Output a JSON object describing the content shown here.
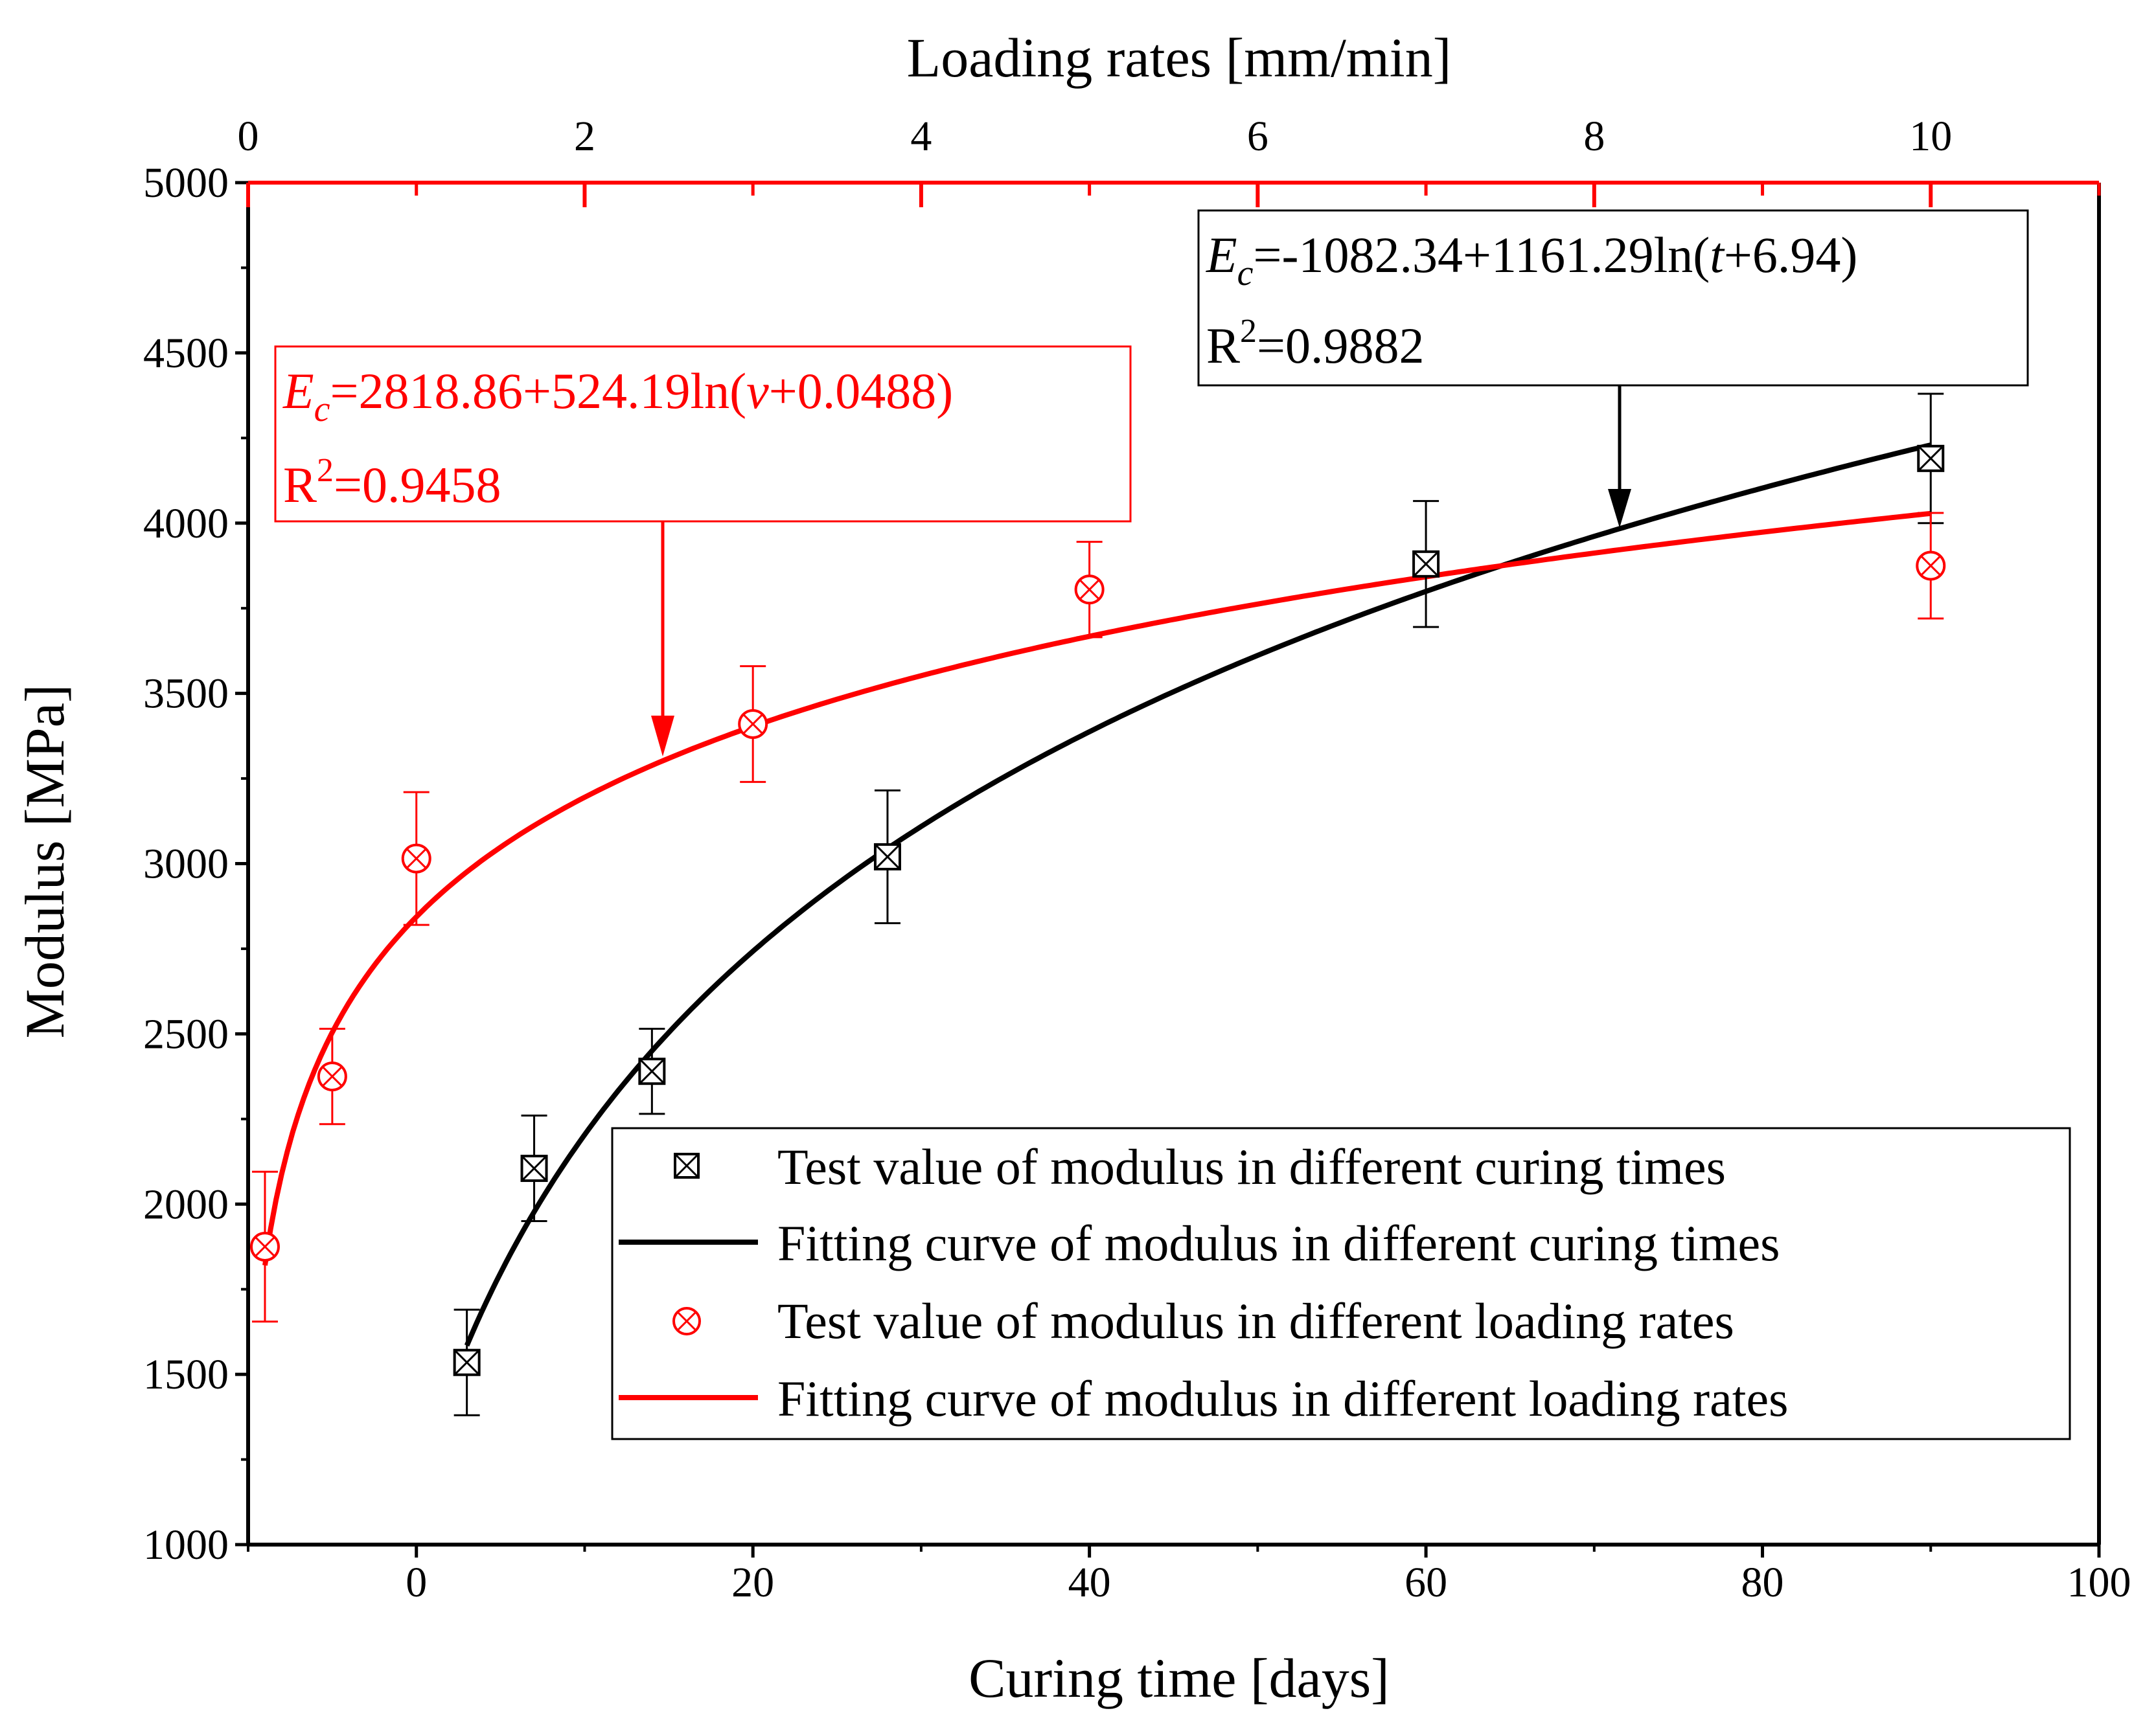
{
  "chart_data": {
    "type": "scatter",
    "title": "",
    "xlabel": "Curing time [days]",
    "ylabel": "Modulus [MPa]",
    "x2label": "Loading rates [mm/min]",
    "xlim": [
      -10,
      100
    ],
    "ylim": [
      1000,
      5000
    ],
    "x2lim": [
      0,
      11
    ],
    "x_ticks": [
      0,
      20,
      40,
      60,
      80,
      100
    ],
    "y_ticks": [
      1000,
      1500,
      2000,
      2500,
      3000,
      3500,
      4000,
      4500,
      5000
    ],
    "x2_ticks": [
      0,
      2,
      4,
      6,
      8,
      10
    ],
    "series": [
      {
        "name": "Test value of modulus in different curing times",
        "axis": "bottom",
        "marker": "square-x",
        "color": "#000000",
        "x": [
          3,
          7,
          14,
          28,
          60,
          90
        ],
        "y": [
          1535,
          2105,
          2390,
          3020,
          3880,
          4190
        ],
        "err": [
          155,
          155,
          125,
          195,
          185,
          190
        ]
      },
      {
        "name": "Fitting curve of modulus in different curing times",
        "axis": "bottom",
        "type": "line",
        "color": "#000000",
        "fit": {
          "a": -1082.34,
          "b": 1161.29,
          "c": 6.94,
          "from": 3,
          "to": 90
        }
      },
      {
        "name": "Test value of modulus in different loading rates",
        "axis": "top",
        "marker": "circle-x",
        "color": "#ff0000",
        "x": [
          0.1,
          0.5,
          1,
          3,
          5,
          10
        ],
        "y": [
          1875,
          2375,
          3015,
          3410,
          3805,
          3875
        ],
        "err": [
          220,
          140,
          195,
          170,
          140,
          155
        ]
      },
      {
        "name": "Fitting curve of modulus in different loading rates",
        "axis": "top",
        "type": "line",
        "color": "#ff0000",
        "fit": {
          "a": 2818.86,
          "b": 524.19,
          "c": 0.0488,
          "from": 0.1,
          "to": 10
        }
      }
    ],
    "annotations": [
      {
        "id": "black-eq",
        "color": "#000000",
        "eq_var": "E",
        "eq_sub": "c",
        "eq_rest": "=-1082.34+1161.29ln(",
        "eq_arg": "t",
        "eq_tail": "+6.94)",
        "r2_label": "R",
        "r2_sup": "2",
        "r2_value": "=0.9882"
      },
      {
        "id": "red-eq",
        "color": "#ff0000",
        "eq_var": "E",
        "eq_sub": "c",
        "eq_rest": "=2818.86+524.19ln(",
        "eq_arg": "v",
        "eq_tail": "+0.0488)",
        "r2_label": "R",
        "r2_sup": "2",
        "r2_value": "=0.9458"
      }
    ],
    "legend_position": "bottom-right"
  }
}
